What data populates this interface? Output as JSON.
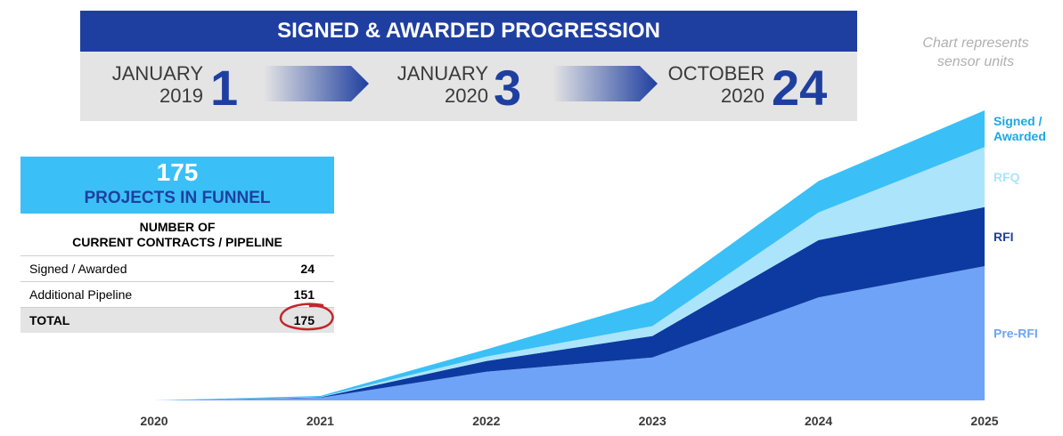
{
  "banner": {
    "title": "SIGNED & AWARDED PROGRESSION",
    "milestones": [
      {
        "line1": "JANUARY",
        "line2": "2019",
        "count": "1"
      },
      {
        "line1": "JANUARY",
        "line2": "2020",
        "count": "3"
      },
      {
        "line1": "OCTOBER",
        "line2": "2020",
        "count": "24"
      }
    ]
  },
  "note": {
    "line1": "Chart represents",
    "line2": "sensor units"
  },
  "funnel": {
    "count": "175",
    "label": "PROJECTS IN FUNNEL"
  },
  "table": {
    "heading1": "NUMBER OF",
    "heading2": "CURRENT CONTRACTS / PIPELINE",
    "rows": [
      {
        "label": "Signed / Awarded",
        "value": "24"
      },
      {
        "label": "Additional Pipeline",
        "value": "151"
      },
      {
        "label": "TOTAL",
        "value": "175"
      }
    ]
  },
  "chart_data": {
    "type": "area",
    "stacked": true,
    "x": [
      "2020",
      "2021",
      "2022",
      "2023",
      "2024",
      "2025"
    ],
    "ylim": [
      0,
      330
    ],
    "grid": false,
    "legend_placement": "right, labels beside each layer",
    "series": [
      {
        "name": "Pre-RFI",
        "color": "#6fa3f7",
        "values": [
          0,
          3,
          32,
          48,
          115,
          150
        ]
      },
      {
        "name": "RFI",
        "color": "#0d3aa0",
        "values": [
          0,
          0.5,
          12,
          24,
          64,
          66
        ]
      },
      {
        "name": "RFQ",
        "color": "#ace4fb",
        "values": [
          0,
          0.3,
          5,
          11,
          31,
          67
        ]
      },
      {
        "name": "Signed / Awarded",
        "color": "#3ac0f6",
        "values": [
          0,
          1.2,
          8,
          28,
          35,
          41
        ]
      }
    ]
  },
  "colors": {
    "brand_blue": "#1f3fa0",
    "funnel_cyan": "#3ac0f6",
    "banner_gray": "#e4e4e4",
    "circle_red": "#c0272d"
  }
}
